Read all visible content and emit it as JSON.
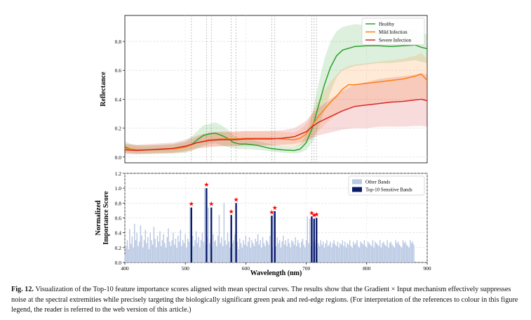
{
  "chart_data": [
    {
      "type": "line",
      "ylabel": "Reflectance",
      "xlim": [
        400,
        900
      ],
      "ylim": [
        -0.04,
        0.98
      ],
      "yticks": [
        "0.0",
        "0.2",
        "0.4",
        "0.6",
        "0.8"
      ],
      "grid": true,
      "legend_position": "top-right",
      "highlight_wavelengths": [
        510,
        535,
        543,
        576,
        584,
        643,
        648,
        709,
        713,
        717
      ],
      "series": [
        {
          "name": "Healthy",
          "color": "#2ca02c",
          "x": [
            400,
            410,
            420,
            440,
            460,
            480,
            500,
            510,
            520,
            530,
            540,
            550,
            560,
            570,
            580,
            590,
            600,
            620,
            640,
            660,
            680,
            690,
            700,
            710,
            720,
            730,
            740,
            750,
            760,
            780,
            800,
            820,
            840,
            860,
            880,
            890,
            900
          ],
          "mean": [
            0.07,
            0.055,
            0.05,
            0.05,
            0.053,
            0.058,
            0.07,
            0.085,
            0.12,
            0.15,
            0.16,
            0.165,
            0.15,
            0.13,
            0.1,
            0.09,
            0.09,
            0.08,
            0.06,
            0.05,
            0.045,
            0.055,
            0.1,
            0.2,
            0.35,
            0.5,
            0.62,
            0.7,
            0.74,
            0.765,
            0.77,
            0.77,
            0.765,
            0.77,
            0.775,
            0.76,
            0.75
          ],
          "lower": [
            0.03,
            0.025,
            0.02,
            0.02,
            0.022,
            0.025,
            0.03,
            0.04,
            0.06,
            0.08,
            0.09,
            0.095,
            0.08,
            0.07,
            0.06,
            0.055,
            0.055,
            0.05,
            0.04,
            0.03,
            0.025,
            0.03,
            0.05,
            0.1,
            0.2,
            0.32,
            0.45,
            0.55,
            0.6,
            0.63,
            0.64,
            0.65,
            0.65,
            0.66,
            0.67,
            0.66,
            0.65
          ],
          "upper": [
            0.11,
            0.09,
            0.08,
            0.08,
            0.085,
            0.09,
            0.11,
            0.14,
            0.18,
            0.22,
            0.23,
            0.24,
            0.22,
            0.19,
            0.15,
            0.13,
            0.13,
            0.11,
            0.09,
            0.075,
            0.07,
            0.09,
            0.16,
            0.3,
            0.5,
            0.68,
            0.8,
            0.87,
            0.9,
            0.92,
            0.91,
            0.9,
            0.88,
            0.88,
            0.88,
            0.86,
            0.85
          ]
        },
        {
          "name": "Mild Infection",
          "color": "#ff7f0e",
          "x": [
            400,
            420,
            440,
            460,
            480,
            500,
            520,
            540,
            560,
            580,
            600,
            620,
            640,
            660,
            680,
            690,
            700,
            710,
            720,
            730,
            740,
            750,
            760,
            770,
            780,
            800,
            820,
            840,
            860,
            880,
            890,
            900
          ],
          "mean": [
            0.06,
            0.05,
            0.05,
            0.052,
            0.056,
            0.068,
            0.1,
            0.12,
            0.125,
            0.125,
            0.13,
            0.13,
            0.13,
            0.125,
            0.12,
            0.13,
            0.16,
            0.22,
            0.28,
            0.33,
            0.38,
            0.42,
            0.47,
            0.5,
            0.5,
            0.51,
            0.52,
            0.53,
            0.54,
            0.56,
            0.575,
            0.53
          ],
          "lower": [
            0.03,
            0.025,
            0.025,
            0.026,
            0.028,
            0.035,
            0.06,
            0.07,
            0.075,
            0.075,
            0.08,
            0.08,
            0.08,
            0.075,
            0.07,
            0.08,
            0.1,
            0.14,
            0.18,
            0.22,
            0.26,
            0.29,
            0.32,
            0.34,
            0.35,
            0.36,
            0.37,
            0.38,
            0.39,
            0.4,
            0.41,
            0.38
          ],
          "upper": [
            0.09,
            0.08,
            0.08,
            0.082,
            0.088,
            0.1,
            0.14,
            0.17,
            0.175,
            0.175,
            0.18,
            0.18,
            0.18,
            0.175,
            0.17,
            0.19,
            0.23,
            0.31,
            0.39,
            0.46,
            0.52,
            0.57,
            0.61,
            0.63,
            0.64,
            0.65,
            0.66,
            0.67,
            0.68,
            0.7,
            0.72,
            0.68
          ]
        },
        {
          "name": "Severe Infection",
          "color": "#d62728",
          "x": [
            400,
            420,
            440,
            460,
            480,
            500,
            520,
            540,
            560,
            580,
            600,
            620,
            640,
            660,
            680,
            700,
            710,
            720,
            740,
            760,
            780,
            800,
            820,
            840,
            860,
            880,
            890,
            900
          ],
          "mean": [
            0.05,
            0.045,
            0.05,
            0.055,
            0.06,
            0.075,
            0.1,
            0.115,
            0.12,
            0.12,
            0.125,
            0.125,
            0.125,
            0.13,
            0.14,
            0.175,
            0.21,
            0.24,
            0.28,
            0.32,
            0.35,
            0.36,
            0.37,
            0.38,
            0.385,
            0.395,
            0.4,
            0.39
          ],
          "lower": [
            0.02,
            0.02,
            0.025,
            0.028,
            0.03,
            0.04,
            0.06,
            0.07,
            0.075,
            0.075,
            0.08,
            0.08,
            0.08,
            0.085,
            0.09,
            0.11,
            0.13,
            0.15,
            0.17,
            0.19,
            0.2,
            0.2,
            0.21,
            0.21,
            0.21,
            0.215,
            0.215,
            0.21
          ],
          "upper": [
            0.09,
            0.085,
            0.09,
            0.095,
            0.1,
            0.12,
            0.15,
            0.17,
            0.175,
            0.175,
            0.18,
            0.18,
            0.18,
            0.185,
            0.2,
            0.25,
            0.3,
            0.34,
            0.4,
            0.46,
            0.5,
            0.52,
            0.54,
            0.55,
            0.56,
            0.57,
            0.58,
            0.57
          ]
        }
      ]
    },
    {
      "type": "bar",
      "xlabel": "Wavelength (nm)",
      "ylabel": "Normalized Importance Score",
      "xlim": [
        400,
        900
      ],
      "ylim": [
        0.0,
        1.2
      ],
      "xticks": [
        "400",
        "500",
        "600",
        "700",
        "800",
        "900"
      ],
      "yticks": [
        "0.0",
        "0.2",
        "0.4",
        "0.6",
        "0.8",
        "1.0",
        "1.2"
      ],
      "grid": true,
      "legend_position": "top-right",
      "series": [
        {
          "name": "Other Bands",
          "color": "#b9c8e3",
          "x_start": 400,
          "x_step": 2,
          "values": [
            0.1,
            0.22,
            0.3,
            0.18,
            0.45,
            0.25,
            0.35,
            0.2,
            0.52,
            0.3,
            0.4,
            0.22,
            0.28,
            0.5,
            0.36,
            0.2,
            0.3,
            0.44,
            0.26,
            0.34,
            0.18,
            0.4,
            0.3,
            0.24,
            0.48,
            0.32,
            0.2,
            0.36,
            0.28,
            0.42,
            0.22,
            0.3,
            0.38,
            0.26,
            0.2,
            0.34,
            0.46,
            0.28,
            0.22,
            0.3,
            0.4,
            0.24,
            0.32,
            0.2,
            0.36,
            0.28,
            0.44,
            0.22,
            0.3,
            0.26,
            0.38,
            0.2,
            0.32,
            0.28,
            0.74,
            0.24,
            0.36,
            0.22,
            0.3,
            0.42,
            0.26,
            0.34,
            0.2,
            0.3,
            0.4,
            0.28,
            1.0,
            0.24,
            0.35,
            0.74,
            0.26,
            0.32,
            0.2,
            0.38,
            0.28,
            0.3,
            0.22,
            0.36,
            0.64,
            0.26,
            0.34,
            0.22,
            0.8,
            0.3,
            0.24,
            0.4,
            0.28,
            0.2,
            0.34,
            0.26,
            0.3,
            0.38,
            0.22,
            0.28,
            0.18,
            0.32,
            0.26,
            0.2,
            0.3,
            0.24,
            0.36,
            0.22,
            0.28,
            0.34,
            0.2,
            0.3,
            0.26,
            0.22,
            0.32,
            0.28,
            0.38,
            0.24,
            0.3,
            0.2,
            0.34,
            0.26,
            0.22,
            0.3,
            0.28,
            0.24,
            0.36,
            0.63,
            0.2,
            0.69,
            0.3,
            0.22,
            0.34,
            0.26,
            0.3,
            0.2,
            0.28,
            0.36,
            0.24,
            0.3,
            0.22,
            0.32,
            0.26,
            0.2,
            0.3,
            0.28,
            0.24,
            0.34,
            0.22,
            0.3,
            0.26,
            0.2,
            0.28,
            0.32,
            0.24,
            0.2,
            0.3,
            0.62,
            0.26,
            0.59,
            0.22,
            0.6,
            0.28,
            0.3,
            0.24,
            0.2,
            0.26,
            0.22,
            0.3,
            0.24,
            0.28,
            0.2,
            0.26,
            0.3,
            0.22,
            0.24,
            0.28,
            0.2,
            0.26,
            0.3,
            0.24,
            0.22,
            0.28,
            0.2,
            0.26,
            0.24,
            0.3,
            0.22,
            0.28,
            0.2,
            0.26,
            0.24,
            0.3,
            0.22,
            0.2,
            0.28,
            0.24,
            0.26,
            0.3,
            0.22,
            0.2,
            0.28,
            0.26,
            0.24,
            0.3,
            0.22,
            0.2,
            0.28,
            0.26,
            0.24,
            0.22,
            0.3,
            0.2,
            0.28,
            0.26,
            0.24,
            0.22,
            0.3,
            0.2,
            0.26,
            0.28,
            0.24,
            0.22,
            0.3,
            0.2,
            0.26,
            0.28,
            0.24,
            0.22,
            0.2,
            0.3,
            0.26,
            0.28,
            0.24,
            0.22,
            0.2,
            0.3,
            0.26,
            0.28,
            0.24,
            0.22,
            0.2,
            0.3,
            0.26,
            0.28,
            0.24
          ]
        },
        {
          "name": "Top-10 Sensitive Bands",
          "color": "#0a1a6b",
          "marker_color": "#ff0000",
          "x": [
            510,
            535,
            543,
            576,
            584,
            643,
            648,
            709,
            713,
            717
          ],
          "values": [
            0.74,
            1.0,
            0.74,
            0.64,
            0.8,
            0.63,
            0.69,
            0.62,
            0.59,
            0.6
          ]
        }
      ]
    }
  ],
  "caption": {
    "label": "Fig. 12.",
    "text": "Visualization of the Top-10 feature importance scores aligned with mean spectral curves. The results show that the Gradient × Input mechanism effectively suppresses noise at the spectral extremities while precisely targeting the biologically significant green peak and red-edge regions. (For interpretation of the references to colour in this figure legend, the reader is referred to the web version of this article.)"
  }
}
